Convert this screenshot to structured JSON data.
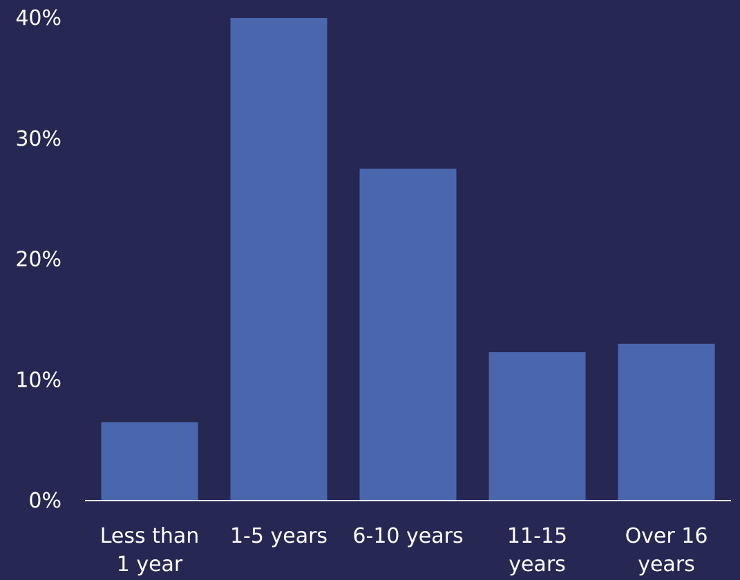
{
  "chart_data": {
    "type": "bar",
    "categories": [
      [
        "Less than",
        "1 year"
      ],
      [
        "1-5 years"
      ],
      [
        "6-10 years"
      ],
      [
        "11-15",
        "years"
      ],
      [
        "Over 16",
        "years"
      ]
    ],
    "values": [
      6.5,
      40,
      27.5,
      12.3,
      13
    ],
    "ylim": [
      0,
      40
    ],
    "yticks": [
      "0%",
      "10%",
      "20%",
      "30%",
      "40%"
    ],
    "grid": false,
    "colors": {
      "background": "#262752",
      "bar": "#4A67AD",
      "text": "#FFFFFF",
      "axis": "#FFFFFF"
    }
  }
}
